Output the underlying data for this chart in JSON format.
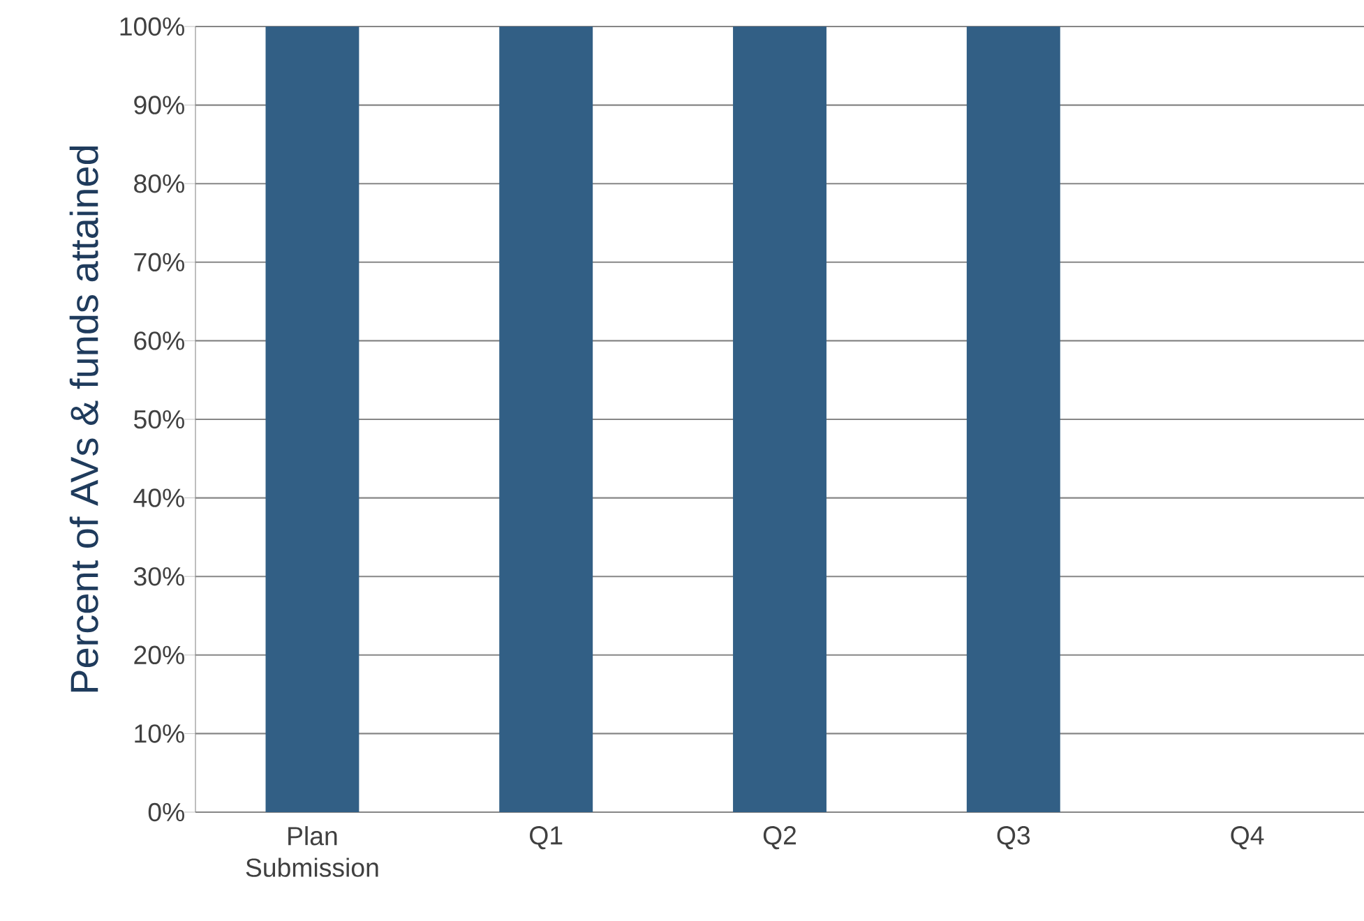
{
  "chart_data": {
    "type": "bar",
    "ylabel": "Percent of AVs & funds attained",
    "categories": [
      "Plan Submission",
      "Q1",
      "Q2",
      "Q3",
      "Q4"
    ],
    "values": [
      100,
      100,
      100,
      100,
      null
    ],
    "color": "#325f85",
    "ylim": [
      0,
      100
    ],
    "yticks": [
      {
        "value": 0,
        "label": "0%"
      },
      {
        "value": 10,
        "label": "10%"
      },
      {
        "value": 20,
        "label": "20%"
      },
      {
        "value": 30,
        "label": "30%"
      },
      {
        "value": 40,
        "label": "40%"
      },
      {
        "value": 50,
        "label": "50%"
      },
      {
        "value": 60,
        "label": "60%"
      },
      {
        "value": 70,
        "label": "70%"
      },
      {
        "value": 80,
        "label": "80%"
      },
      {
        "value": 90,
        "label": "90%"
      },
      {
        "value": 100,
        "label": "100%"
      }
    ],
    "grid": "y"
  }
}
